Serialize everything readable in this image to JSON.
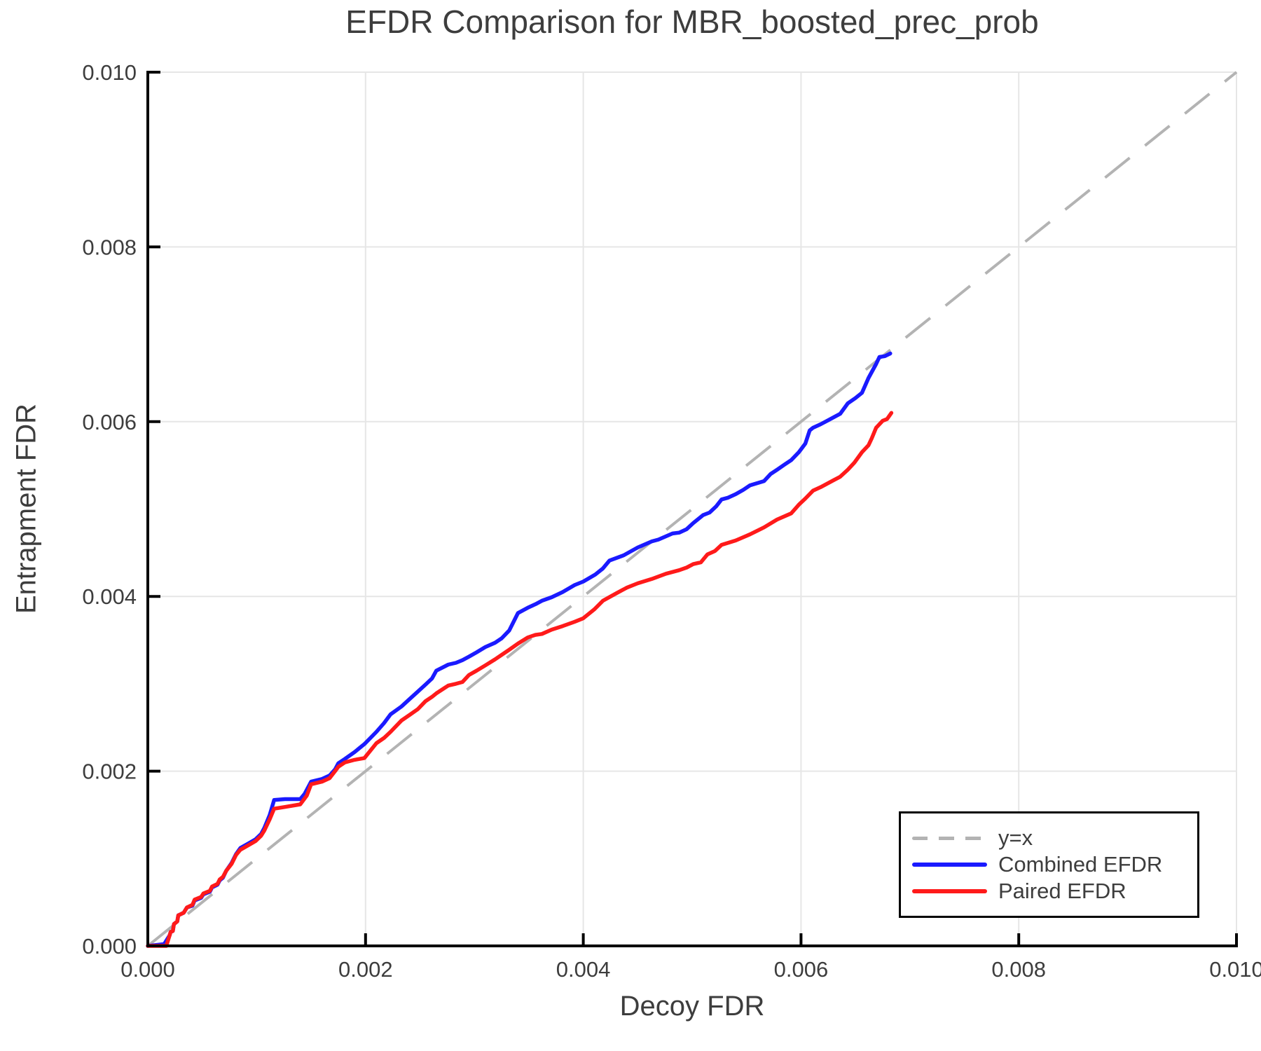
{
  "figure": {
    "title": "EFDR Comparison for MBR_boosted_prec_prob",
    "xlabel": "Decoy FDR",
    "ylabel": "Entrapment FDR"
  },
  "colors": {
    "text": "#3d3d3d",
    "spine": "#000000",
    "grid": "#e6e6e6",
    "identity": "#b3b3b3",
    "combined": "#1a1aff",
    "paired": "#ff1a1a",
    "background": "#ffffff"
  },
  "chart_data": {
    "type": "line",
    "title": "EFDR Comparison for MBR_boosted_prec_prob",
    "xlabel": "Decoy FDR",
    "ylabel": "Entrapment FDR",
    "xlim": [
      0.0,
      0.01
    ],
    "ylim": [
      0.0,
      0.01
    ],
    "grid": true,
    "legend_position": "lower right",
    "xticks": {
      "values": [
        0.0,
        0.002,
        0.004,
        0.006,
        0.008,
        0.01
      ],
      "labels": [
        "0.000",
        "0.002",
        "0.004",
        "0.006",
        "0.008",
        "0.010"
      ]
    },
    "yticks": {
      "values": [
        0.0,
        0.002,
        0.004,
        0.006,
        0.008,
        0.01
      ],
      "labels": [
        "0.000",
        "0.002",
        "0.004",
        "0.006",
        "0.008",
        "0.010"
      ]
    },
    "diagonal": {
      "label": "y=x",
      "style": "dashed",
      "color": "#b3b3b3",
      "from": [
        0.0,
        0.0
      ],
      "to": [
        0.01,
        0.01
      ]
    },
    "legend_entries": [
      {
        "label": "y=x",
        "style": "dashed",
        "color": "#b3b3b3"
      },
      {
        "label": "Combined EFDR",
        "style": "solid",
        "color": "#1a1aff"
      },
      {
        "label": "Paired EFDR",
        "style": "solid",
        "color": "#ff1a1a"
      }
    ],
    "series": [
      {
        "name": "Combined EFDR",
        "color": "#1a1aff",
        "points": [
          [
            0.0,
            0.0
          ],
          [
            0.00015,
            2e-05
          ],
          [
            0.0002,
            0.00012
          ],
          [
            0.00021,
            0.00016
          ],
          [
            0.00023,
            0.00017
          ],
          [
            0.00024,
            0.00025
          ],
          [
            0.00027,
            0.00028
          ],
          [
            0.00028,
            0.00035
          ],
          [
            0.00033,
            0.00038
          ],
          [
            0.00036,
            0.00044
          ],
          [
            0.00041,
            0.00046
          ],
          [
            0.00043,
            0.00052
          ],
          [
            0.00049,
            0.00055
          ],
          [
            0.00051,
            0.00059
          ],
          [
            0.00057,
            0.00062
          ],
          [
            0.00059,
            0.00067
          ],
          [
            0.00064,
            0.0007
          ],
          [
            0.00066,
            0.00075
          ],
          [
            0.00069,
            0.00078
          ],
          [
            0.00072,
            0.00086
          ],
          [
            0.00077,
            0.00095
          ],
          [
            0.00081,
            0.00105
          ],
          [
            0.00085,
            0.00112
          ],
          [
            0.00092,
            0.00117
          ],
          [
            0.00099,
            0.00122
          ],
          [
            0.00104,
            0.00128
          ],
          [
            0.00107,
            0.00135
          ],
          [
            0.00112,
            0.0015
          ],
          [
            0.00116,
            0.00167
          ],
          [
            0.00126,
            0.00168
          ],
          [
            0.0014,
            0.00168
          ],
          [
            0.00144,
            0.00174
          ],
          [
            0.0015,
            0.00188
          ],
          [
            0.0016,
            0.00191
          ],
          [
            0.00167,
            0.00195
          ],
          [
            0.00172,
            0.00202
          ],
          [
            0.00175,
            0.00209
          ],
          [
            0.00181,
            0.00214
          ],
          [
            0.0019,
            0.00222
          ],
          [
            0.00199,
            0.00231
          ],
          [
            0.0021,
            0.00245
          ],
          [
            0.00217,
            0.00255
          ],
          [
            0.00223,
            0.00265
          ],
          [
            0.00233,
            0.00274
          ],
          [
            0.0024,
            0.00282
          ],
          [
            0.00248,
            0.00291
          ],
          [
            0.00255,
            0.00299
          ],
          [
            0.00261,
            0.00306
          ],
          [
            0.00265,
            0.00315
          ],
          [
            0.00276,
            0.00322
          ],
          [
            0.00283,
            0.00324
          ],
          [
            0.00289,
            0.00327
          ],
          [
            0.00295,
            0.00331
          ],
          [
            0.00302,
            0.00336
          ],
          [
            0.0031,
            0.00342
          ],
          [
            0.00319,
            0.00347
          ],
          [
            0.00325,
            0.00352
          ],
          [
            0.00332,
            0.00361
          ],
          [
            0.0034,
            0.00381
          ],
          [
            0.00349,
            0.00387
          ],
          [
            0.00356,
            0.00391
          ],
          [
            0.00362,
            0.00395
          ],
          [
            0.00371,
            0.00399
          ],
          [
            0.00381,
            0.00405
          ],
          [
            0.00392,
            0.00413
          ],
          [
            0.004,
            0.00417
          ],
          [
            0.00411,
            0.00425
          ],
          [
            0.00418,
            0.00432
          ],
          [
            0.00424,
            0.00441
          ],
          [
            0.00437,
            0.00447
          ],
          [
            0.0045,
            0.00456
          ],
          [
            0.00463,
            0.00463
          ],
          [
            0.00469,
            0.00465
          ],
          [
            0.00482,
            0.00472
          ],
          [
            0.00488,
            0.00473
          ],
          [
            0.00495,
            0.00477
          ],
          [
            0.00501,
            0.00484
          ],
          [
            0.0051,
            0.00493
          ],
          [
            0.00516,
            0.00496
          ],
          [
            0.00522,
            0.00503
          ],
          [
            0.00527,
            0.00511
          ],
          [
            0.00533,
            0.00513
          ],
          [
            0.0054,
            0.00517
          ],
          [
            0.00547,
            0.00522
          ],
          [
            0.00553,
            0.00527
          ],
          [
            0.00566,
            0.00532
          ],
          [
            0.00572,
            0.0054
          ],
          [
            0.00578,
            0.00545
          ],
          [
            0.00585,
            0.00551
          ],
          [
            0.00591,
            0.00556
          ],
          [
            0.00598,
            0.00565
          ],
          [
            0.00604,
            0.00575
          ],
          [
            0.00608,
            0.0059
          ],
          [
            0.00611,
            0.00593
          ],
          [
            0.00618,
            0.00597
          ],
          [
            0.00624,
            0.00601
          ],
          [
            0.0063,
            0.00605
          ],
          [
            0.00636,
            0.00609
          ],
          [
            0.00643,
            0.00621
          ],
          [
            0.0065,
            0.00627
          ],
          [
            0.00656,
            0.00633
          ],
          [
            0.00662,
            0.0065
          ],
          [
            0.00669,
            0.00666
          ],
          [
            0.00672,
            0.00674
          ],
          [
            0.00677,
            0.00675
          ],
          [
            0.00682,
            0.00678
          ]
        ]
      },
      {
        "name": "Paired EFDR",
        "color": "#ff1a1a",
        "points": [
          [
            0.0,
            0.0
          ],
          [
            0.00017,
            0.0
          ],
          [
            0.0002,
            0.00012
          ],
          [
            0.00021,
            0.00016
          ],
          [
            0.00023,
            0.00017
          ],
          [
            0.00024,
            0.00025
          ],
          [
            0.00027,
            0.00028
          ],
          [
            0.00028,
            0.00035
          ],
          [
            0.00033,
            0.00038
          ],
          [
            0.00036,
            0.00044
          ],
          [
            0.00041,
            0.00047
          ],
          [
            0.00043,
            0.00053
          ],
          [
            0.00049,
            0.00056
          ],
          [
            0.00051,
            0.0006
          ],
          [
            0.00057,
            0.00063
          ],
          [
            0.00059,
            0.00068
          ],
          [
            0.00064,
            0.00071
          ],
          [
            0.00066,
            0.00076
          ],
          [
            0.00069,
            0.00079
          ],
          [
            0.00072,
            0.00086
          ],
          [
            0.00077,
            0.00094
          ],
          [
            0.00081,
            0.00104
          ],
          [
            0.00085,
            0.0011
          ],
          [
            0.00092,
            0.00115
          ],
          [
            0.00099,
            0.0012
          ],
          [
            0.00104,
            0.00126
          ],
          [
            0.00107,
            0.00132
          ],
          [
            0.00112,
            0.00145
          ],
          [
            0.00116,
            0.00157
          ],
          [
            0.00126,
            0.00159
          ],
          [
            0.0014,
            0.00162
          ],
          [
            0.00146,
            0.00172
          ],
          [
            0.0015,
            0.00185
          ],
          [
            0.0016,
            0.00188
          ],
          [
            0.00167,
            0.00192
          ],
          [
            0.00172,
            0.002
          ],
          [
            0.00175,
            0.00205
          ],
          [
            0.00181,
            0.0021
          ],
          [
            0.0019,
            0.00213
          ],
          [
            0.00199,
            0.00215
          ],
          [
            0.0021,
            0.00232
          ],
          [
            0.00217,
            0.00238
          ],
          [
            0.00223,
            0.00245
          ],
          [
            0.00233,
            0.00258
          ],
          [
            0.0024,
            0.00264
          ],
          [
            0.00248,
            0.00271
          ],
          [
            0.00255,
            0.0028
          ],
          [
            0.00261,
            0.00285
          ],
          [
            0.00265,
            0.00289
          ],
          [
            0.00276,
            0.00298
          ],
          [
            0.00283,
            0.003
          ],
          [
            0.00289,
            0.00302
          ],
          [
            0.00295,
            0.0031
          ],
          [
            0.00302,
            0.00315
          ],
          [
            0.0031,
            0.00321
          ],
          [
            0.00319,
            0.00328
          ],
          [
            0.00325,
            0.00333
          ],
          [
            0.00332,
            0.00339
          ],
          [
            0.0034,
            0.00346
          ],
          [
            0.00349,
            0.00353
          ],
          [
            0.00356,
            0.00356
          ],
          [
            0.00362,
            0.00357
          ],
          [
            0.00371,
            0.00362
          ],
          [
            0.00381,
            0.00366
          ],
          [
            0.00392,
            0.00371
          ],
          [
            0.004,
            0.00375
          ],
          [
            0.0041,
            0.00385
          ],
          [
            0.00418,
            0.00395
          ],
          [
            0.00431,
            0.00404
          ],
          [
            0.0044,
            0.0041
          ],
          [
            0.0045,
            0.00415
          ],
          [
            0.00463,
            0.0042
          ],
          [
            0.00476,
            0.00426
          ],
          [
            0.00488,
            0.0043
          ],
          [
            0.00495,
            0.00433
          ],
          [
            0.00501,
            0.00437
          ],
          [
            0.00508,
            0.00439
          ],
          [
            0.00514,
            0.00448
          ],
          [
            0.00521,
            0.00452
          ],
          [
            0.00527,
            0.00459
          ],
          [
            0.0054,
            0.00464
          ],
          [
            0.00553,
            0.00471
          ],
          [
            0.00566,
            0.00479
          ],
          [
            0.00578,
            0.00488
          ],
          [
            0.00591,
            0.00495
          ],
          [
            0.00598,
            0.00505
          ],
          [
            0.00604,
            0.00512
          ],
          [
            0.00611,
            0.00521
          ],
          [
            0.00618,
            0.00525
          ],
          [
            0.00624,
            0.00529
          ],
          [
            0.0063,
            0.00533
          ],
          [
            0.00636,
            0.00537
          ],
          [
            0.00643,
            0.00545
          ],
          [
            0.00649,
            0.00553
          ],
          [
            0.00656,
            0.00565
          ],
          [
            0.00662,
            0.00573
          ],
          [
            0.00665,
            0.00581
          ],
          [
            0.00669,
            0.00593
          ],
          [
            0.00675,
            0.00601
          ],
          [
            0.00679,
            0.00603
          ],
          [
            0.00683,
            0.0061
          ]
        ]
      }
    ]
  }
}
